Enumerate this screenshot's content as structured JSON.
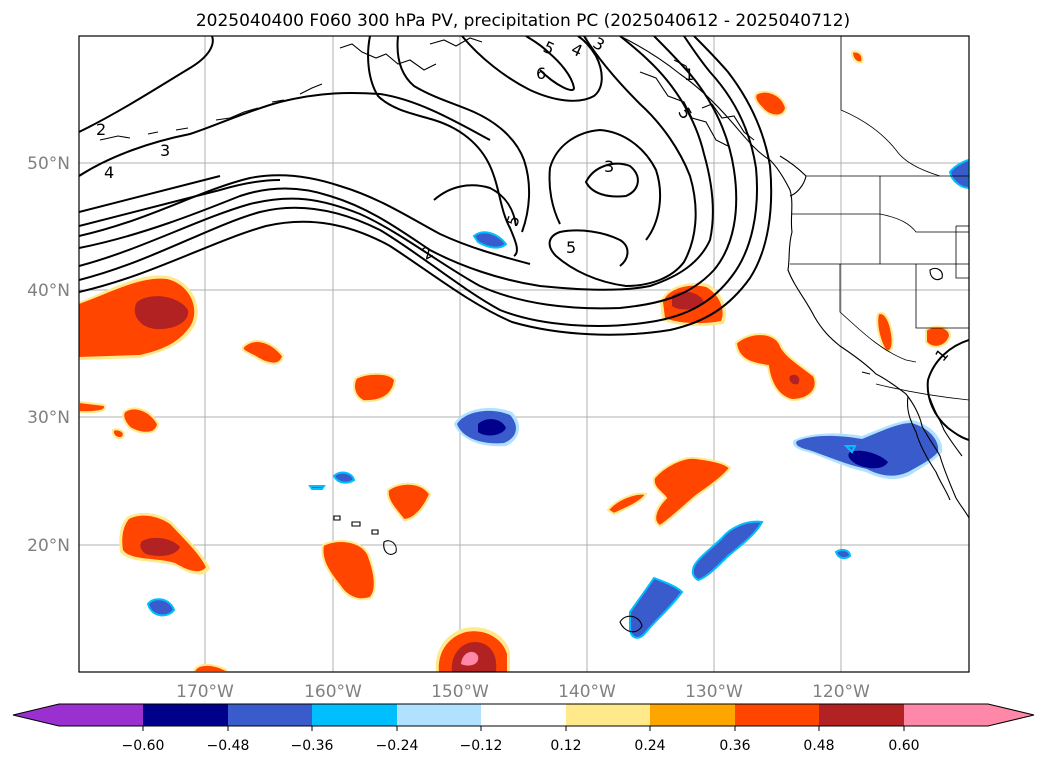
{
  "title": "2025040400 F060 300 hPa PV, precipitation PC (2025040612 - 2025040712)",
  "lat_labels": [
    "50°N",
    "40°N",
    "30°N",
    "20°N"
  ],
  "lon_labels": [
    "170°W",
    "160°W",
    "150°W",
    "140°W",
    "130°W",
    "120°W"
  ],
  "pv_contour_labels": [
    "2",
    "3",
    "4",
    "2",
    "3",
    "5",
    "4",
    "5",
    "6",
    "1",
    "3",
    "5",
    "5",
    "1"
  ],
  "colorbar": {
    "tick_labels": [
      "−0.60",
      "−0.48",
      "−0.36",
      "−0.24",
      "−0.12",
      "0.12",
      "0.24",
      "0.36",
      "0.48",
      "0.60"
    ],
    "colors": [
      "#9b30d0",
      "#00008b",
      "#3a5bcb",
      "#00bfff",
      "#b0e2ff",
      "#ffffff",
      "#ffe98a",
      "#ffa500",
      "#ff4500",
      "#b22222",
      "#ff88a8"
    ]
  },
  "palette": {
    "pos_012": "#ffe98a",
    "pos_024": "#ffa500",
    "pos_036": "#ff4500",
    "pos_048": "#b22222",
    "pos_060": "#ff88a8",
    "neg_012": "#b0e2ff",
    "neg_024": "#00bfff",
    "neg_036": "#3a5bcb",
    "neg_048": "#00008b"
  }
}
